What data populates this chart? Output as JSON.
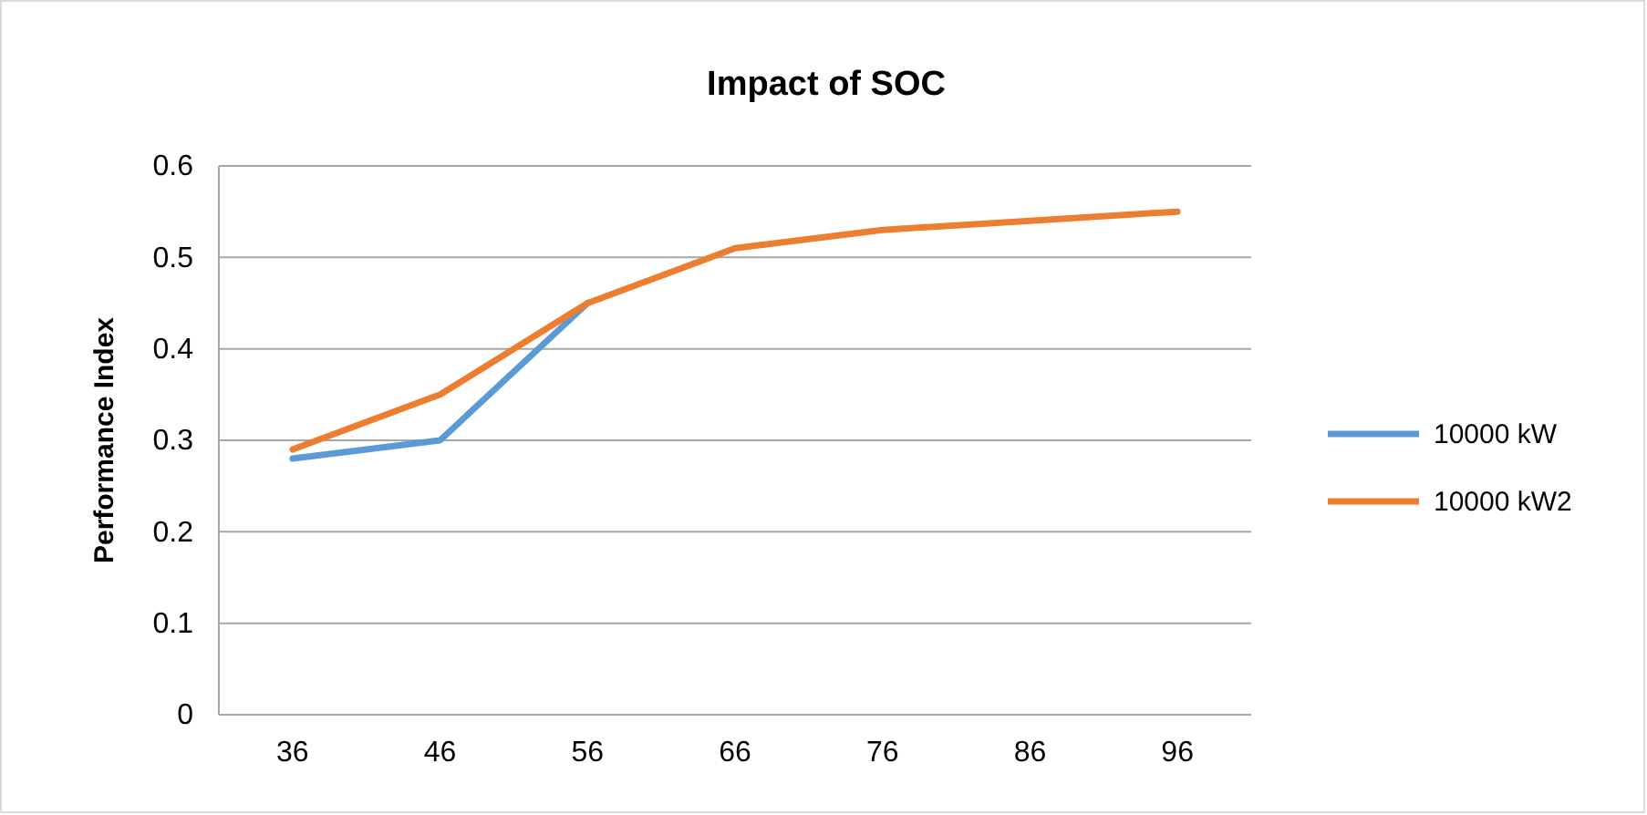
{
  "chart_data": {
    "type": "line",
    "title": "Impact of SOC",
    "ylabel": "Performance Index",
    "categories": [
      "36",
      "46",
      "56",
      "66",
      "76",
      "86",
      "96"
    ],
    "series": [
      {
        "name": "10000 kW",
        "color": "#5b9bd5",
        "values": [
          0.28,
          0.3,
          0.45,
          null,
          null,
          null,
          null
        ]
      },
      {
        "name": "10000 kW2",
        "color": "#ed7d31",
        "values": [
          0.29,
          0.35,
          0.45,
          0.51,
          0.53,
          0.54,
          0.55
        ]
      }
    ],
    "ylim": [
      0,
      0.6
    ],
    "yticks": [
      0,
      0.1,
      0.2,
      0.3,
      0.4,
      0.5,
      0.6
    ],
    "grid": "y",
    "legend": "right",
    "marker": "none",
    "line_style": "solid"
  }
}
